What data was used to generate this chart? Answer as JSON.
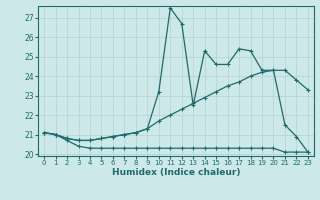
{
  "xlabel": "Humidex (Indice chaleur)",
  "background_color": "#cce8e8",
  "grid_color": "#b0d0d0",
  "line_color": "#1e6b6b",
  "xlim": [
    -0.5,
    23.5
  ],
  "ylim": [
    19.9,
    27.6
  ],
  "yticks": [
    20,
    21,
    22,
    23,
    24,
    25,
    26,
    27
  ],
  "xticks": [
    0,
    1,
    2,
    3,
    4,
    5,
    6,
    7,
    8,
    9,
    10,
    11,
    12,
    13,
    14,
    15,
    16,
    17,
    18,
    19,
    20,
    21,
    22,
    23
  ],
  "curve1_x": [
    0,
    1,
    2,
    3,
    4,
    5,
    6,
    7,
    8,
    9,
    10,
    11,
    12,
    13,
    14,
    15,
    16,
    17,
    18,
    19,
    20,
    21,
    22,
    23
  ],
  "curve1_y": [
    21.1,
    21.0,
    20.7,
    20.4,
    20.3,
    20.3,
    20.3,
    20.3,
    20.3,
    20.3,
    20.3,
    20.3,
    20.3,
    20.3,
    20.3,
    20.3,
    20.3,
    20.3,
    20.3,
    20.3,
    20.3,
    20.1,
    20.1,
    20.1
  ],
  "curve2_x": [
    0,
    1,
    2,
    3,
    4,
    5,
    6,
    7,
    8,
    9,
    10,
    11,
    12,
    13,
    14,
    15,
    16,
    17,
    18,
    19,
    20,
    21,
    22,
    23
  ],
  "curve2_y": [
    21.1,
    21.0,
    20.8,
    20.7,
    20.7,
    20.8,
    20.9,
    21.0,
    21.1,
    21.3,
    21.7,
    22.0,
    22.3,
    22.6,
    22.9,
    23.2,
    23.5,
    23.7,
    24.0,
    24.2,
    24.3,
    24.3,
    23.8,
    23.3
  ],
  "curve3_x": [
    0,
    1,
    2,
    3,
    4,
    5,
    6,
    7,
    8,
    9,
    10,
    11,
    12,
    13,
    14,
    15,
    16,
    17,
    18,
    19,
    20,
    21,
    22,
    23
  ],
  "curve3_y": [
    21.1,
    21.0,
    20.8,
    20.7,
    20.7,
    20.8,
    20.9,
    21.0,
    21.1,
    21.3,
    23.2,
    27.5,
    26.7,
    22.5,
    25.3,
    24.6,
    24.6,
    25.4,
    25.3,
    24.3,
    24.3,
    21.5,
    20.9,
    20.1
  ]
}
